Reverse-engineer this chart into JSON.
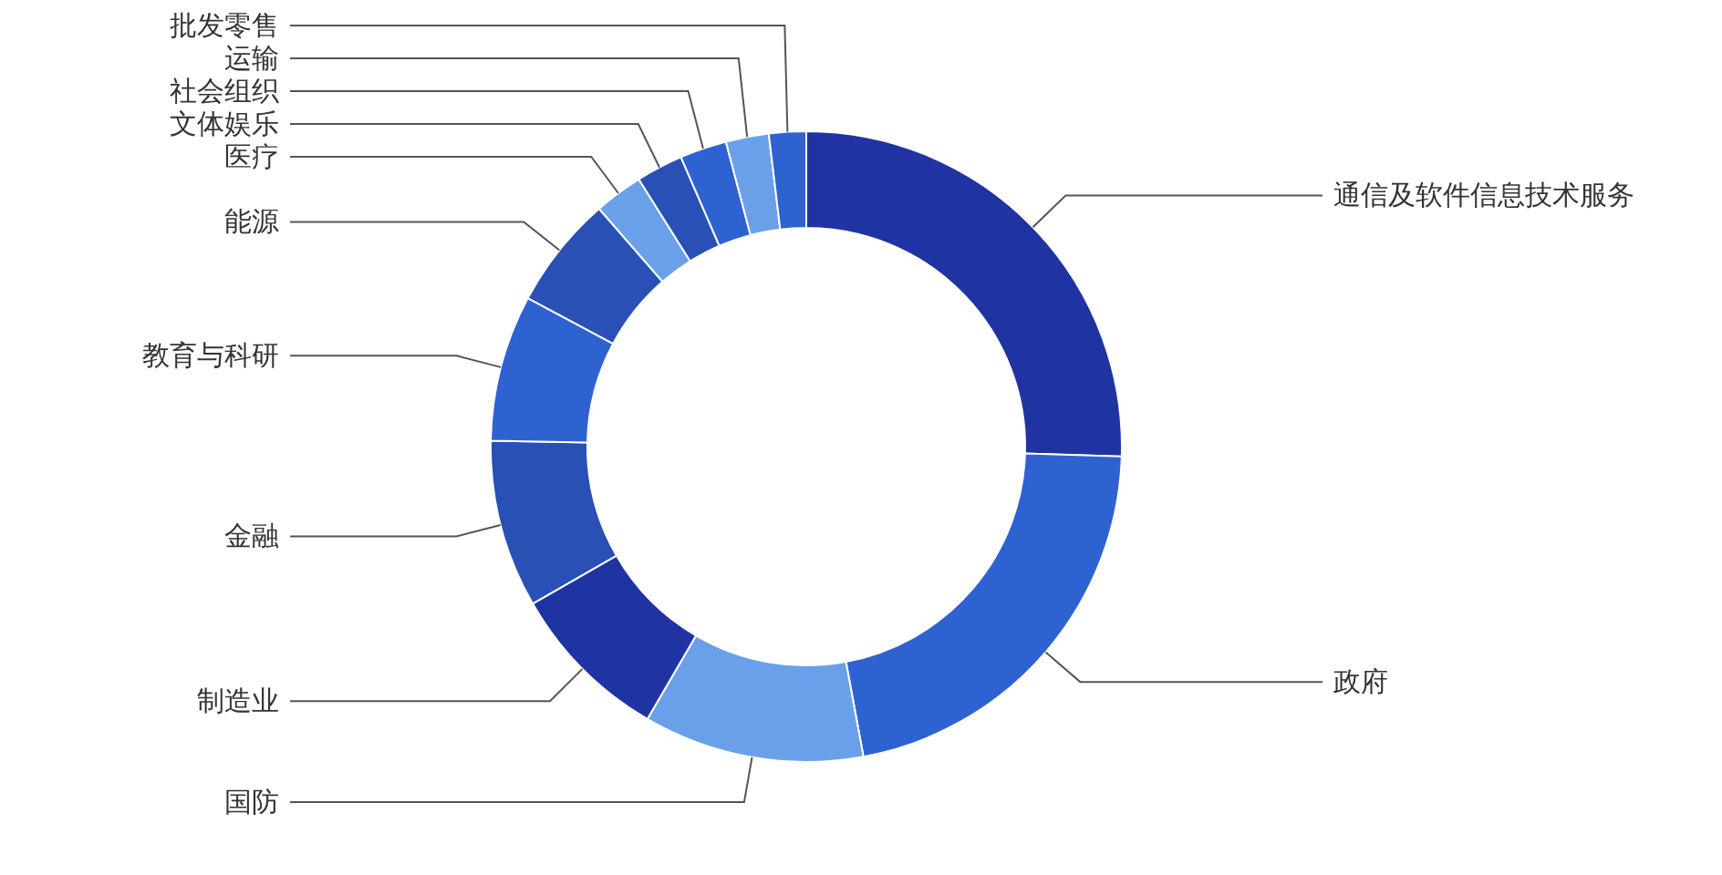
{
  "chart_data": {
    "type": "donut",
    "categories": [
      "通信及软件信息技术服务",
      "政府",
      "国防",
      "制造业",
      "金融",
      "教育与科研",
      "能源",
      "医疗",
      "文体娱乐",
      "社会组织",
      "运输",
      "批发零售"
    ],
    "values": [
      25.5,
      21.6,
      11.3,
      8.3,
      8.6,
      7.5,
      5.8,
      2.5,
      2.4,
      2.4,
      2.2,
      1.9
    ],
    "colors": [
      "#2033a3",
      "#2f62d1",
      "#6aa0ea",
      "#2033a3",
      "#2850b5",
      "#2f62d1",
      "#2850b5",
      "#6aa0ea",
      "#2850b5",
      "#2f62d1",
      "#6aa0ea",
      "#2f62d1"
    ]
  }
}
